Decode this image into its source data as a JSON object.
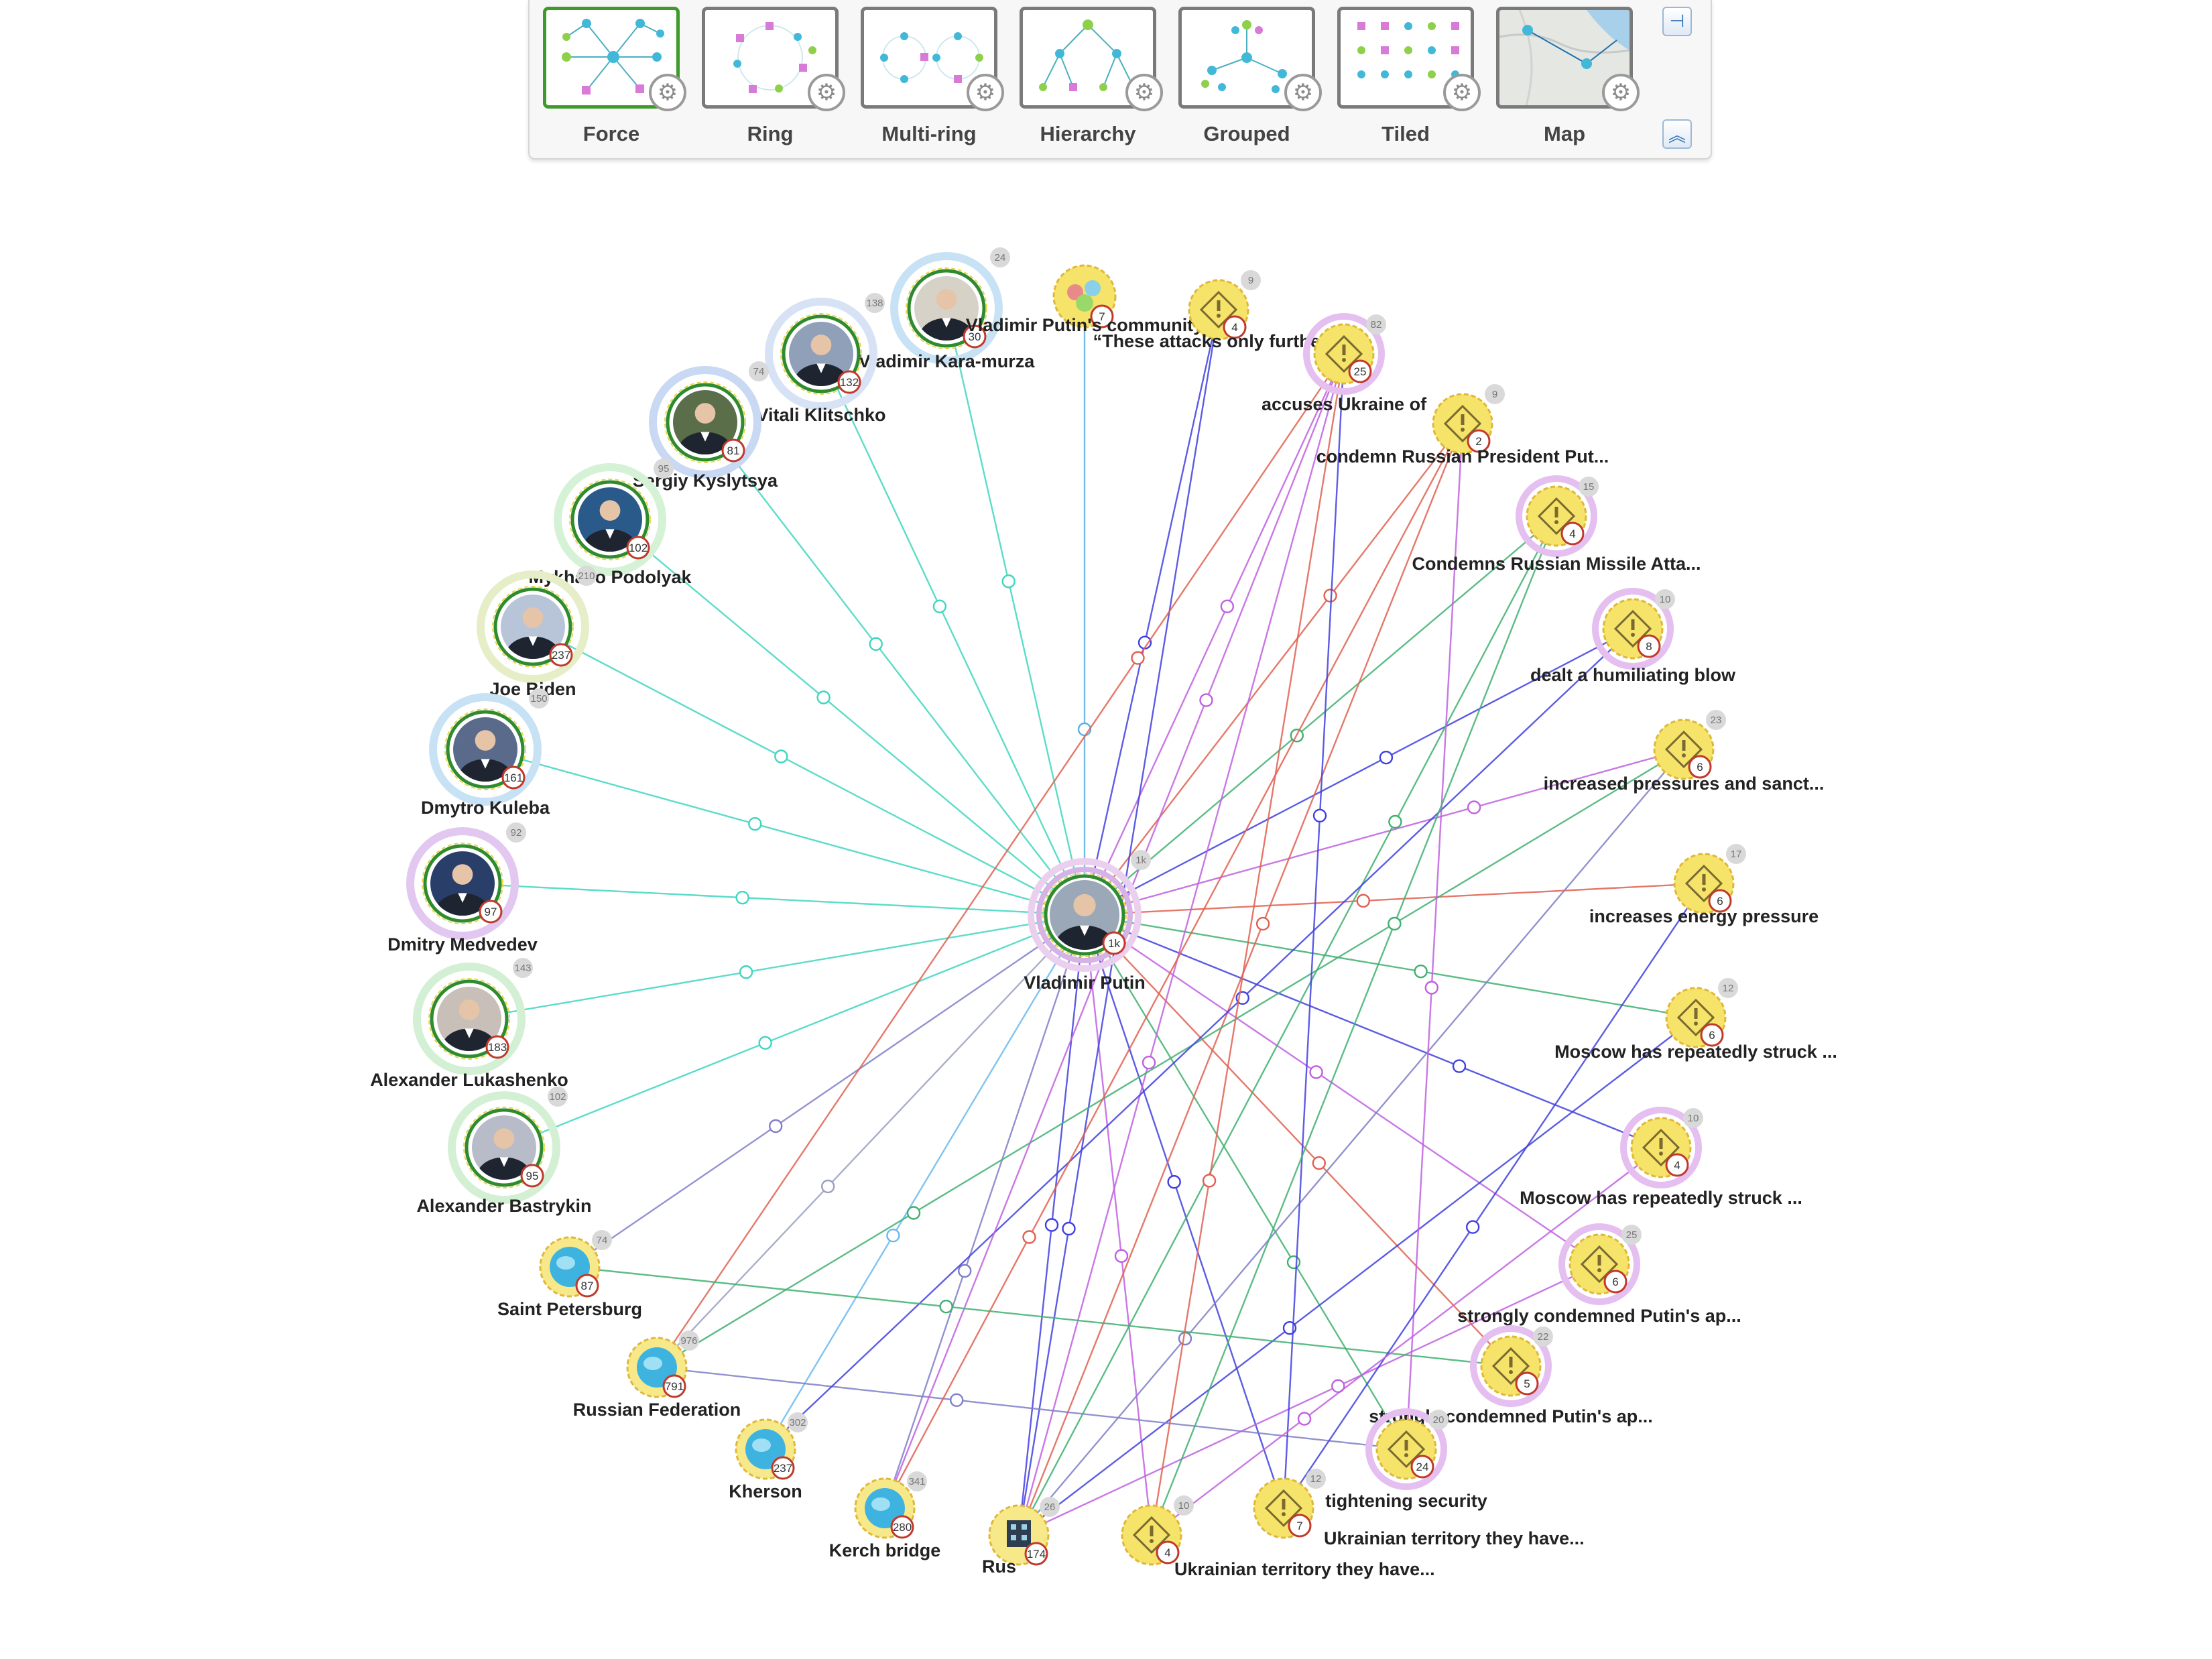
{
  "toolbar": {
    "layouts": [
      {
        "id": "force",
        "label": "Force",
        "selected": true
      },
      {
        "id": "ring",
        "label": "Ring",
        "selected": false
      },
      {
        "id": "multiring",
        "label": "Multi-ring",
        "selected": false
      },
      {
        "id": "hierarchy",
        "label": "Hierarchy",
        "selected": false
      },
      {
        "id": "grouped",
        "label": "Grouped",
        "selected": false
      },
      {
        "id": "tiled",
        "label": "Tiled",
        "selected": false
      },
      {
        "id": "map",
        "label": "Map",
        "selected": false
      }
    ],
    "pin_icon": "pin-icon",
    "collapse_icon": "double-chevron-up-icon"
  },
  "colors": {
    "person_ring": "#2e8b2e",
    "event_fill": "#f5e36a",
    "location_fill": "#3fb3e0",
    "link_teal": "#3fd6c0",
    "link_blue": "#4040e0",
    "link_purple": "#c060e0",
    "link_red": "#e06050",
    "link_green": "#40b070"
  },
  "graph": {
    "hub": {
      "label": "Vladimir Putin",
      "badge": "1k",
      "grey": "1k"
    },
    "people": [
      {
        "label": "Vladimir Kara-murza",
        "badge": "30",
        "grey": "24"
      },
      {
        "label": "Vitali Klitschko",
        "badge": "132",
        "grey": "138"
      },
      {
        "label": "Sergiy Kyslytsya",
        "badge": "81",
        "grey": "74"
      },
      {
        "label": "Mykhailo Podolyak",
        "badge": "102",
        "grey": "95"
      },
      {
        "label": "Joe Biden",
        "badge": "237",
        "grey": "210"
      },
      {
        "label": "Dmytro Kuleba",
        "badge": "161",
        "grey": "150"
      },
      {
        "label": "Dmitry Medvedev",
        "badge": "97",
        "grey": "92"
      },
      {
        "label": "Alexander Lukashenko",
        "badge": "183",
        "grey": "143"
      },
      {
        "label": "Alexander Bastrykin",
        "badge": "95",
        "grey": "102"
      }
    ],
    "community": {
      "label": "Vladimir Putin's community",
      "badge": "7"
    },
    "locations": [
      {
        "label": "Saint Petersburg",
        "badge": "87",
        "grey": "74"
      },
      {
        "label": "Russian Federation",
        "badge": "791",
        "grey": "976"
      },
      {
        "label": "Kherson",
        "badge": "237",
        "grey": "302"
      },
      {
        "label": "Kerch bridge",
        "badge": "280",
        "grey": "341"
      }
    ],
    "organization": {
      "label": "Rus",
      "badge": "174",
      "grey": "26"
    },
    "events": [
      {
        "label": "“These attacks only further r...",
        "badge": "4",
        "grey": "9"
      },
      {
        "label": "accuses Ukraine of",
        "badge": "25",
        "grey": "82"
      },
      {
        "label": "condemn Russian President Put...",
        "badge": "2",
        "grey": "9"
      },
      {
        "label": "Condemns Russian Missile Atta...",
        "badge": "4",
        "grey": "15"
      },
      {
        "label": "dealt a humiliating blow",
        "badge": "8",
        "grey": "10"
      },
      {
        "label": "increased pressures and sanct...",
        "badge": "6",
        "grey": "23"
      },
      {
        "label": "increases energy pressure",
        "badge": "6",
        "grey": "17"
      },
      {
        "label": "Moscow has repeatedly struck ...",
        "badge": "6",
        "grey": "12"
      },
      {
        "label": "Moscow has repeatedly struck ...",
        "badge": "4",
        "grey": "10"
      },
      {
        "label": "strongly condemned Putin's ap...",
        "badge": "6",
        "grey": "25"
      },
      {
        "label": "strongly condemned Putin's ap...",
        "badge": "5",
        "grey": "22"
      },
      {
        "label": "tightening security",
        "badge": "24",
        "grey": "20"
      },
      {
        "label": "Ukrainian territory they have...",
        "badge": "7",
        "grey": "12"
      },
      {
        "label": "Ukrainian territory they have...",
        "badge": "4",
        "grey": "10"
      }
    ]
  }
}
